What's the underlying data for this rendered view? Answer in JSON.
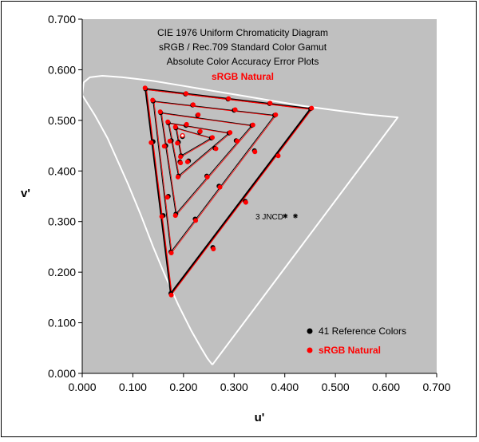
{
  "chart_data": {
    "type": "scatter",
    "title_lines": [
      "CIE 1976 Uniform Chromaticity Diagram",
      "sRGB / Rec.709 Standard Color Gamut",
      "Absolute Color Accuracy Error Plots"
    ],
    "subtitle": "sRGB Natural",
    "xlabel": "u'",
    "ylabel": "v'",
    "xlim": [
      0,
      0.7
    ],
    "ylim": [
      0,
      0.7
    ],
    "x_ticks": [
      "0.000",
      "0.100",
      "0.200",
      "0.300",
      "0.400",
      "0.500",
      "0.600",
      "0.700"
    ],
    "y_ticks": [
      "0.000",
      "0.100",
      "0.200",
      "0.300",
      "0.400",
      "0.500",
      "0.600",
      "0.700"
    ],
    "grid": false,
    "legend_position": "bottom-right",
    "annotation": "3 JNCD",
    "jncd_markers": [
      [
        0.401,
        0.311
      ],
      [
        0.421,
        0.311
      ]
    ],
    "colors": {
      "plot_background": "#c0c0c0",
      "locus": "#ffffff",
      "reference": "#000000",
      "measured": "#ff0000",
      "measured_text": "#ff0000"
    },
    "spectral_locus": [
      [
        0.257,
        0.017
      ],
      [
        0.247,
        0.03
      ],
      [
        0.235,
        0.05
      ],
      [
        0.215,
        0.085
      ],
      [
        0.19,
        0.135
      ],
      [
        0.165,
        0.19
      ],
      [
        0.14,
        0.25
      ],
      [
        0.115,
        0.315
      ],
      [
        0.09,
        0.375
      ],
      [
        0.07,
        0.42
      ],
      [
        0.05,
        0.465
      ],
      [
        0.025,
        0.51
      ],
      [
        0.0,
        0.55
      ],
      [
        0.003,
        0.575
      ],
      [
        0.015,
        0.585
      ],
      [
        0.04,
        0.588
      ],
      [
        0.08,
        0.585
      ],
      [
        0.14,
        0.578
      ],
      [
        0.2,
        0.568
      ],
      [
        0.26,
        0.558
      ],
      [
        0.32,
        0.548
      ],
      [
        0.38,
        0.538
      ],
      [
        0.44,
        0.528
      ],
      [
        0.5,
        0.52
      ],
      [
        0.56,
        0.512
      ],
      [
        0.623,
        0.506
      ],
      [
        0.257,
        0.017
      ]
    ],
    "reference_triangles": [
      [
        [
          0.125,
          0.562
        ],
        [
          0.451,
          0.523
        ],
        [
          0.175,
          0.158
        ]
      ],
      [
        [
          0.14,
          0.538
        ],
        [
          0.38,
          0.51
        ],
        [
          0.175,
          0.24
        ]
      ],
      [
        [
          0.155,
          0.515
        ],
        [
          0.335,
          0.49
        ],
        [
          0.185,
          0.315
        ]
      ],
      [
        [
          0.17,
          0.495
        ],
        [
          0.29,
          0.475
        ],
        [
          0.19,
          0.39
        ]
      ],
      [
        [
          0.185,
          0.485
        ],
        [
          0.255,
          0.465
        ],
        [
          0.195,
          0.43
        ]
      ]
    ],
    "series": [
      {
        "name": "41 Reference Colors",
        "color": "#000000",
        "points": [
          [
            0.125,
            0.562
          ],
          [
            0.451,
            0.523
          ],
          [
            0.175,
            0.158
          ],
          [
            0.204,
            0.552
          ],
          [
            0.288,
            0.542
          ],
          [
            0.37,
            0.533
          ],
          [
            0.386,
            0.431
          ],
          [
            0.322,
            0.34
          ],
          [
            0.258,
            0.249
          ],
          [
            0.193,
            0.418
          ],
          [
            0.16,
            0.312
          ],
          [
            0.14,
            0.458
          ],
          [
            0.14,
            0.538
          ],
          [
            0.38,
            0.51
          ],
          [
            0.175,
            0.24
          ],
          [
            0.218,
            0.53
          ],
          [
            0.3,
            0.52
          ],
          [
            0.34,
            0.44
          ],
          [
            0.27,
            0.37
          ],
          [
            0.223,
            0.305
          ],
          [
            0.165,
            0.45
          ],
          [
            0.155,
            0.515
          ],
          [
            0.335,
            0.49
          ],
          [
            0.185,
            0.315
          ],
          [
            0.228,
            0.51
          ],
          [
            0.304,
            0.46
          ],
          [
            0.246,
            0.39
          ],
          [
            0.17,
            0.35
          ],
          [
            0.17,
            0.495
          ],
          [
            0.29,
            0.475
          ],
          [
            0.19,
            0.39
          ],
          [
            0.205,
            0.49
          ],
          [
            0.262,
            0.445
          ],
          [
            0.21,
            0.42
          ],
          [
            0.176,
            0.46
          ],
          [
            0.185,
            0.485
          ],
          [
            0.255,
            0.465
          ],
          [
            0.195,
            0.43
          ],
          [
            0.232,
            0.477
          ],
          [
            0.19,
            0.457
          ],
          [
            0.198,
            0.468
          ]
        ]
      },
      {
        "name": "sRGB Natural",
        "color": "#ff0000",
        "points": [
          [
            0.124,
            0.564
          ],
          [
            0.453,
            0.524
          ],
          [
            0.176,
            0.155
          ],
          [
            0.205,
            0.553
          ],
          [
            0.289,
            0.543
          ],
          [
            0.371,
            0.534
          ],
          [
            0.387,
            0.43
          ],
          [
            0.323,
            0.338
          ],
          [
            0.259,
            0.246
          ],
          [
            0.194,
            0.416
          ],
          [
            0.157,
            0.31
          ],
          [
            0.136,
            0.456
          ],
          [
            0.139,
            0.54
          ],
          [
            0.382,
            0.511
          ],
          [
            0.176,
            0.238
          ],
          [
            0.219,
            0.531
          ],
          [
            0.302,
            0.521
          ],
          [
            0.341,
            0.438
          ],
          [
            0.272,
            0.368
          ],
          [
            0.224,
            0.302
          ],
          [
            0.162,
            0.449
          ],
          [
            0.154,
            0.517
          ],
          [
            0.337,
            0.491
          ],
          [
            0.184,
            0.312
          ],
          [
            0.229,
            0.511
          ],
          [
            0.306,
            0.459
          ],
          [
            0.247,
            0.388
          ],
          [
            0.168,
            0.348
          ],
          [
            0.169,
            0.497
          ],
          [
            0.292,
            0.476
          ],
          [
            0.189,
            0.388
          ],
          [
            0.206,
            0.492
          ],
          [
            0.264,
            0.444
          ],
          [
            0.208,
            0.418
          ],
          [
            0.173,
            0.459
          ],
          [
            0.184,
            0.487
          ],
          [
            0.257,
            0.466
          ],
          [
            0.194,
            0.428
          ],
          [
            0.233,
            0.478
          ],
          [
            0.188,
            0.455
          ],
          [
            0.198,
            0.47
          ]
        ]
      }
    ]
  }
}
